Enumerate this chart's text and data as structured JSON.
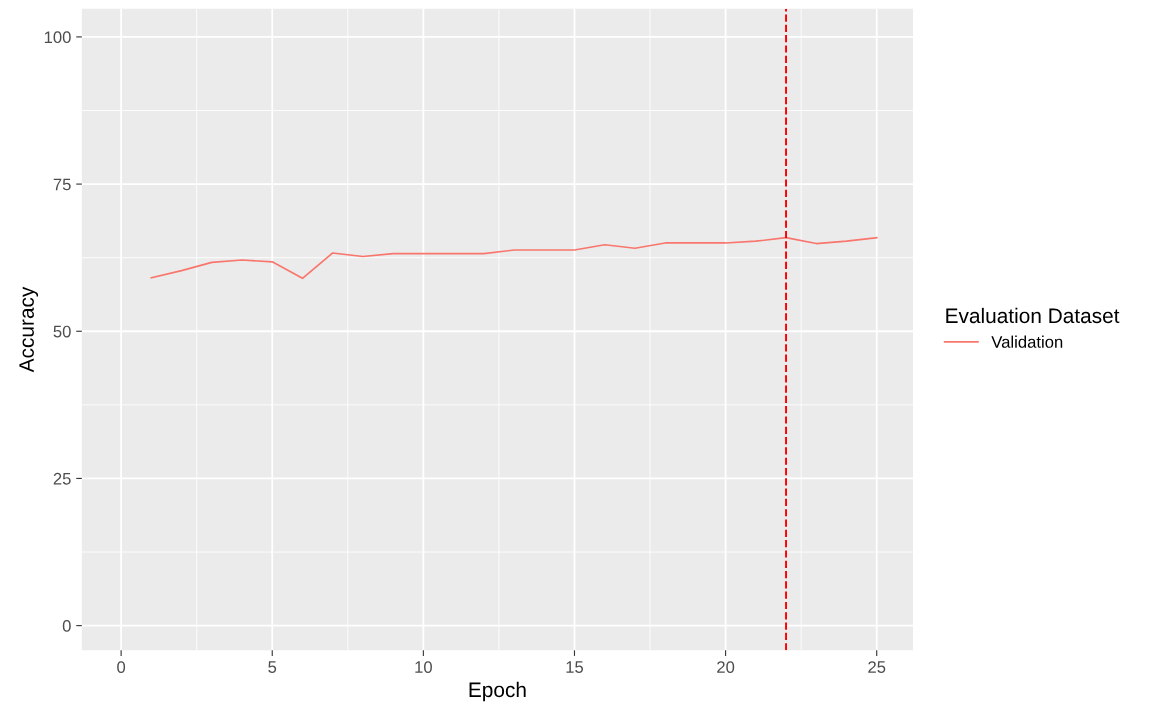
{
  "chart_data": {
    "type": "line",
    "xlabel": "Epoch",
    "ylabel": "Accuracy",
    "legend_title": "Evaluation Dataset",
    "x": [
      1,
      2,
      3,
      4,
      5,
      6,
      7,
      8,
      9,
      10,
      11,
      12,
      13,
      14,
      15,
      16,
      17,
      18,
      19,
      20,
      21,
      22,
      23,
      24,
      25
    ],
    "series": [
      {
        "name": "Validation",
        "color": "#f8766d",
        "values": [
          59.1,
          60.3,
          61.7,
          62.1,
          61.8,
          59.0,
          63.3,
          62.7,
          63.2,
          63.2,
          63.2,
          63.2,
          63.8,
          63.8,
          63.8,
          64.7,
          64.1,
          65.0,
          65.0,
          65.0,
          65.3,
          65.9,
          64.9,
          65.3,
          65.9
        ]
      }
    ],
    "xlim": [
      -1.3,
      26.2
    ],
    "ylim": [
      -4.2,
      104.8
    ],
    "xticks": [
      0,
      5,
      10,
      15,
      20,
      25
    ],
    "yticks": [
      0,
      25,
      50,
      75,
      100
    ],
    "ref_lines": [
      {
        "axis": "x",
        "value": 22,
        "color": "#ff0000",
        "line_style": "dashed"
      }
    ],
    "grid": true,
    "legend": "right",
    "marker": "none",
    "line_style": "solid"
  }
}
